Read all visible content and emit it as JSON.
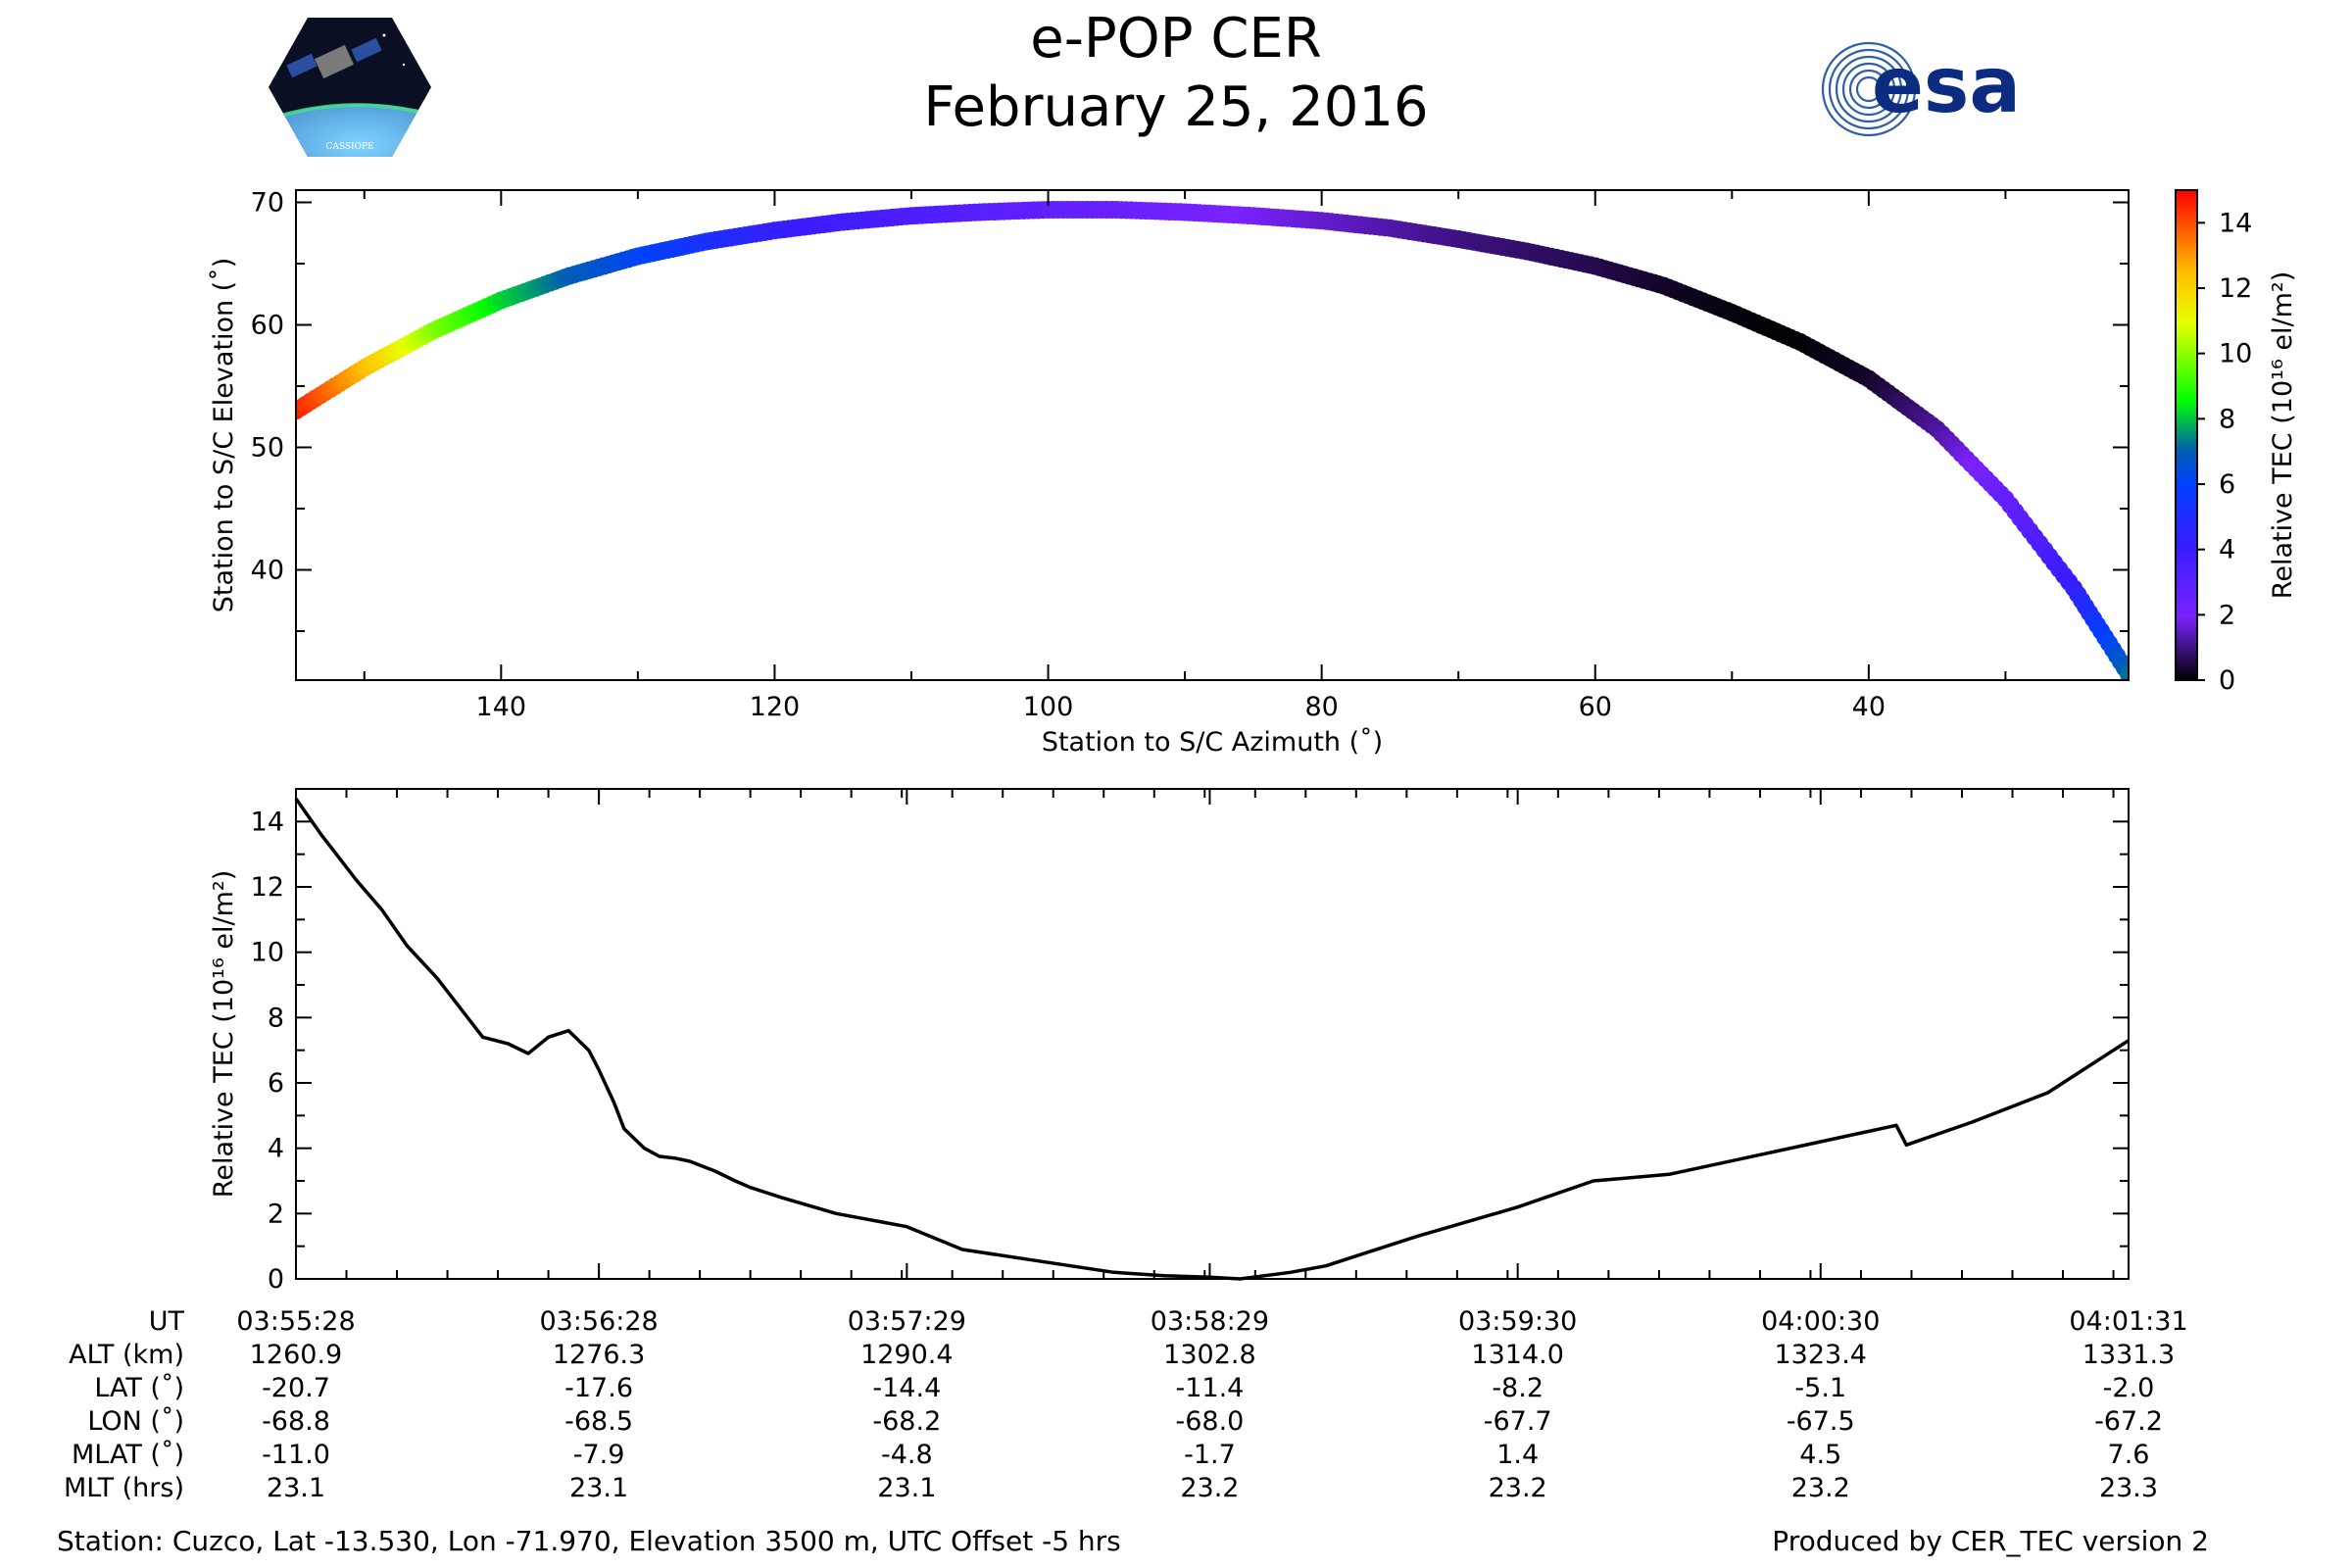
{
  "header": {
    "title": "e-POP CER",
    "date": "February 25, 2016",
    "left_logo_text": "CASSIOPE",
    "right_logo_text": "esa"
  },
  "footer": {
    "station": "Station: Cuzco, Lat -13.530, Lon -71.970, Elevation 3500 m, UTC Offset -5 hrs",
    "producer": "Produced by CER_TEC version 2"
  },
  "colors": {
    "curve": "#000000",
    "axes": "#000000",
    "background": "#ffffff"
  },
  "chart_data": [
    {
      "type": "scatter",
      "xlabel": "Station to S/C Azimuth (˚)",
      "ylabel": "Station to S/C Elevation (˚)",
      "xlim": [
        155,
        21
      ],
      "ylim": [
        31,
        71
      ],
      "x_ticks": [
        140,
        120,
        100,
        80,
        60,
        40
      ],
      "y_ticks": [
        40,
        50,
        60,
        70
      ],
      "grid": false,
      "colorbar": {
        "label": "Relative TEC (10¹⁶ el/m²)",
        "range": [
          0,
          15
        ],
        "ticks": [
          0,
          2,
          4,
          6,
          8,
          10,
          12,
          14
        ],
        "colormap": "gnuplot-rainbow"
      },
      "points": [
        {
          "az": 155.0,
          "el": 53.0,
          "tec": 14.7
        },
        {
          "az": 150.0,
          "el": 56.5,
          "tec": 12.5
        },
        {
          "az": 145.0,
          "el": 59.5,
          "tec": 10.0
        },
        {
          "az": 140.0,
          "el": 62.0,
          "tec": 8.2
        },
        {
          "az": 135.0,
          "el": 64.0,
          "tec": 7.0
        },
        {
          "az": 130.0,
          "el": 65.6,
          "tec": 6.2
        },
        {
          "az": 125.0,
          "el": 66.8,
          "tec": 5.2
        },
        {
          "az": 120.0,
          "el": 67.7,
          "tec": 4.3
        },
        {
          "az": 115.0,
          "el": 68.4,
          "tec": 3.8
        },
        {
          "az": 110.0,
          "el": 68.9,
          "tec": 3.5
        },
        {
          "az": 105.0,
          "el": 69.2,
          "tec": 3.1
        },
        {
          "az": 100.0,
          "el": 69.4,
          "tec": 2.8
        },
        {
          "az": 95.0,
          "el": 69.4,
          "tec": 2.5
        },
        {
          "az": 90.0,
          "el": 69.2,
          "tec": 2.2
        },
        {
          "az": 85.0,
          "el": 68.9,
          "tec": 1.9
        },
        {
          "az": 80.0,
          "el": 68.5,
          "tec": 1.6
        },
        {
          "az": 75.0,
          "el": 67.9,
          "tec": 1.3
        },
        {
          "az": 70.0,
          "el": 67.0,
          "tec": 1.0
        },
        {
          "az": 65.0,
          "el": 66.0,
          "tec": 0.8
        },
        {
          "az": 60.0,
          "el": 64.8,
          "tec": 0.6
        },
        {
          "az": 55.0,
          "el": 63.2,
          "tec": 0.3
        },
        {
          "az": 50.0,
          "el": 61.0,
          "tec": 0.1
        },
        {
          "az": 45.0,
          "el": 58.6,
          "tec": 0.05
        },
        {
          "az": 40.0,
          "el": 55.6,
          "tec": 0.3
        },
        {
          "az": 35.0,
          "el": 51.5,
          "tec": 1.2
        },
        {
          "az": 30.0,
          "el": 45.8,
          "tec": 2.6
        },
        {
          "az": 25.0,
          "el": 38.5,
          "tec": 4.2
        },
        {
          "az": 21.0,
          "el": 31.5,
          "tec": 7.2
        }
      ]
    },
    {
      "type": "line",
      "ylabel": "Relative TEC (10¹⁶ el/m²)",
      "ylim": [
        0,
        15
      ],
      "y_ticks": [
        0,
        2,
        4,
        6,
        8,
        10,
        12,
        14
      ],
      "grid": false,
      "x_info_labels": [
        "UT",
        "ALT (km)",
        "LAT (˚)",
        "LON (˚)",
        "MLAT (˚)",
        "MLT (hrs)"
      ],
      "x_info_columns": [
        [
          "03:55:28",
          "1260.9",
          "-20.7",
          "-68.8",
          "-11.0",
          "23.1"
        ],
        [
          "03:56:28",
          "1276.3",
          "-17.6",
          "-68.5",
          "-7.9",
          "23.1"
        ],
        [
          "03:57:29",
          "1290.4",
          "-14.4",
          "-68.2",
          "-4.8",
          "23.1"
        ],
        [
          "03:58:29",
          "1302.8",
          "-11.4",
          "-68.0",
          "-1.7",
          "23.2"
        ],
        [
          "03:59:30",
          "1314.0",
          "-8.2",
          "-67.7",
          "1.4",
          "23.2"
        ],
        [
          "04:00:30",
          "1323.4",
          "-5.1",
          "-67.5",
          "4.5",
          "23.2"
        ],
        [
          "04:01:31",
          "1331.3",
          "-2.0",
          "-67.2",
          "7.6",
          "23.3"
        ]
      ],
      "x": [
        "03:55:28",
        "03:55:33",
        "03:55:40",
        "03:55:45",
        "03:55:50",
        "03:55:56",
        "03:56:01",
        "03:56:05",
        "03:56:10",
        "03:56:14",
        "03:56:18",
        "03:56:22",
        "03:56:26",
        "03:56:28",
        "03:56:31",
        "03:56:33",
        "03:56:37",
        "03:56:40",
        "03:56:43",
        "03:56:46",
        "03:56:51",
        "03:56:55",
        "03:56:58",
        "03:57:04",
        "03:57:15",
        "03:57:29",
        "03:57:40",
        "03:57:55",
        "03:58:10",
        "03:58:20",
        "03:58:29",
        "03:58:35",
        "03:58:45",
        "03:58:52",
        "03:59:00",
        "03:59:10",
        "03:59:30",
        "03:59:45",
        "04:00:00",
        "04:00:15",
        "04:00:30",
        "04:00:45",
        "04:00:47",
        "04:01:00",
        "04:01:15",
        "04:01:31"
      ],
      "series": [
        {
          "values": [
            14.7,
            13.6,
            12.2,
            11.3,
            10.2,
            9.2,
            8.2,
            7.4,
            7.2,
            6.9,
            7.4,
            7.6,
            7.0,
            6.4,
            5.4,
            4.6,
            4.0,
            3.75,
            3.7,
            3.6,
            3.3,
            3.0,
            2.8,
            2.5,
            2.0,
            1.6,
            0.9,
            0.55,
            0.2,
            0.1,
            0.05,
            0.0,
            0.2,
            0.4,
            0.8,
            1.3,
            2.2,
            3.0,
            3.2,
            3.7,
            4.2,
            4.7,
            4.1,
            4.8,
            5.7,
            7.3
          ]
        }
      ]
    }
  ]
}
